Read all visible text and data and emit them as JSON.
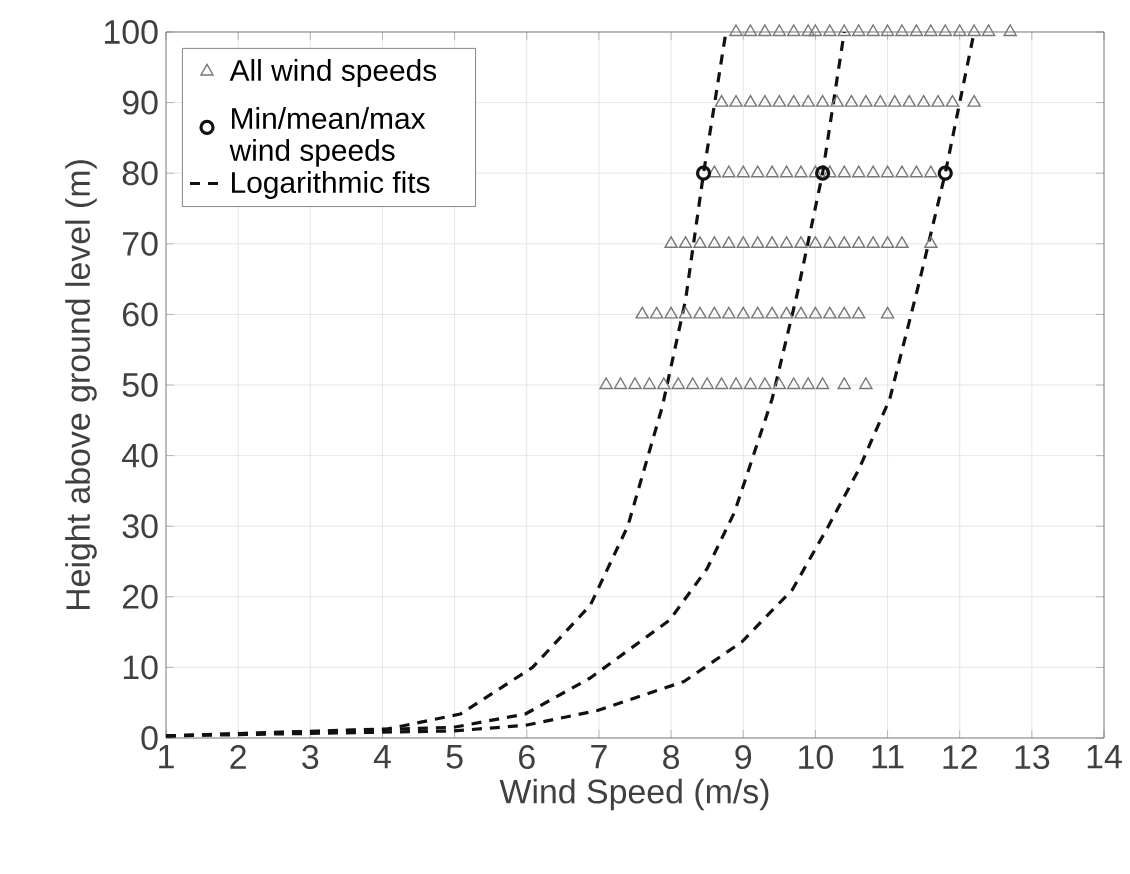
{
  "chart_data": {
    "type": "scatter",
    "xlabel": "Wind Speed (m/s)",
    "ylabel": "Height above ground level (m)",
    "xlim": [
      1,
      14
    ],
    "ylim": [
      0,
      100
    ],
    "xticks": [
      1,
      2,
      3,
      4,
      5,
      6,
      7,
      8,
      9,
      10,
      11,
      12,
      13,
      14
    ],
    "yticks": [
      0,
      10,
      20,
      30,
      40,
      50,
      60,
      70,
      80,
      90,
      100
    ],
    "grid": true,
    "legend": "top left",
    "series": [
      {
        "name": "All wind speeds",
        "type": "scatter",
        "marker": "triangle",
        "color": "#777777",
        "x": [
          8.9,
          9.1,
          9.3,
          9.5,
          9.7,
          9.9,
          10.0,
          10.2,
          10.4,
          10.6,
          10.8,
          11.0,
          11.2,
          11.4,
          11.6,
          11.8,
          12.0,
          12.2,
          12.4,
          12.7,
          8.7,
          8.9,
          9.1,
          9.3,
          9.5,
          9.7,
          9.9,
          10.1,
          10.3,
          10.5,
          10.7,
          10.9,
          11.1,
          11.3,
          11.5,
          11.7,
          11.9,
          12.2,
          8.6,
          8.8,
          9.0,
          9.2,
          9.4,
          9.6,
          9.8,
          10.0,
          10.2,
          10.4,
          10.6,
          10.8,
          11.0,
          11.2,
          11.4,
          11.6,
          8.0,
          8.2,
          8.4,
          8.6,
          8.8,
          9.0,
          9.2,
          9.4,
          9.6,
          9.8,
          10.0,
          10.2,
          10.4,
          10.6,
          10.8,
          11.0,
          11.2,
          11.6,
          7.6,
          7.8,
          8.0,
          8.2,
          8.4,
          8.6,
          8.8,
          9.0,
          9.2,
          9.4,
          9.6,
          9.8,
          10.0,
          10.2,
          10.4,
          10.6,
          11.0,
          7.1,
          7.3,
          7.5,
          7.7,
          7.9,
          8.1,
          8.3,
          8.5,
          8.7,
          8.9,
          9.1,
          9.3,
          9.5,
          9.7,
          9.9,
          10.1,
          10.4,
          10.7
        ],
        "values": [
          100,
          100,
          100,
          100,
          100,
          100,
          100,
          100,
          100,
          100,
          100,
          100,
          100,
          100,
          100,
          100,
          100,
          100,
          100,
          100,
          90,
          90,
          90,
          90,
          90,
          90,
          90,
          90,
          90,
          90,
          90,
          90,
          90,
          90,
          90,
          90,
          90,
          90,
          80,
          80,
          80,
          80,
          80,
          80,
          80,
          80,
          80,
          80,
          80,
          80,
          80,
          80,
          80,
          80,
          70,
          70,
          70,
          70,
          70,
          70,
          70,
          70,
          70,
          70,
          70,
          70,
          70,
          70,
          70,
          70,
          70,
          70,
          60,
          60,
          60,
          60,
          60,
          60,
          60,
          60,
          60,
          60,
          60,
          60,
          60,
          60,
          60,
          60,
          60,
          50,
          50,
          50,
          50,
          50,
          50,
          50,
          50,
          50,
          50,
          50,
          50,
          50,
          50,
          50,
          50,
          50,
          50
        ]
      },
      {
        "name": "Min/mean/max wind speeds",
        "type": "scatter",
        "marker": "circle",
        "color": "#111111",
        "x": [
          8.45,
          10.1,
          11.8
        ],
        "values": [
          80,
          80,
          80
        ]
      },
      {
        "name": "Logarithmic fits",
        "type": "line",
        "line_style": "dashed",
        "marker": "none",
        "color": "#111111",
        "x": [
          1,
          4.08,
          5.08,
          6.08,
          6.88,
          7.4,
          7.88,
          8.2,
          8.45,
          8.76
        ],
        "values": [
          0.3,
          1.3,
          3.4,
          10,
          18.8,
          30,
          47,
          62,
          80,
          100
        ]
      },
      {
        "type": "line",
        "line_style": "dashed",
        "marker": "none",
        "color": "#111111",
        "x": [
          1,
          4.98,
          5.98,
          6.88,
          7.98,
          8.5,
          8.88,
          9.4,
          9.75,
          10.1,
          10.4
        ],
        "values": [
          0.3,
          1.5,
          3.4,
          8.5,
          16.7,
          24,
          32,
          48,
          63,
          80,
          100
        ]
      },
      {
        "type": "line",
        "line_style": "dashed",
        "marker": "none",
        "color": "#111111",
        "x": [
          1,
          4.98,
          5.98,
          6.98,
          8.18,
          8.98,
          9.3,
          9.68,
          10.18,
          10.6,
          11.03,
          11.45,
          11.8,
          12.2
        ],
        "values": [
          0.3,
          1,
          1.8,
          3.9,
          8,
          13.6,
          17,
          21,
          30,
          38,
          48,
          65,
          80,
          100
        ]
      }
    ]
  }
}
